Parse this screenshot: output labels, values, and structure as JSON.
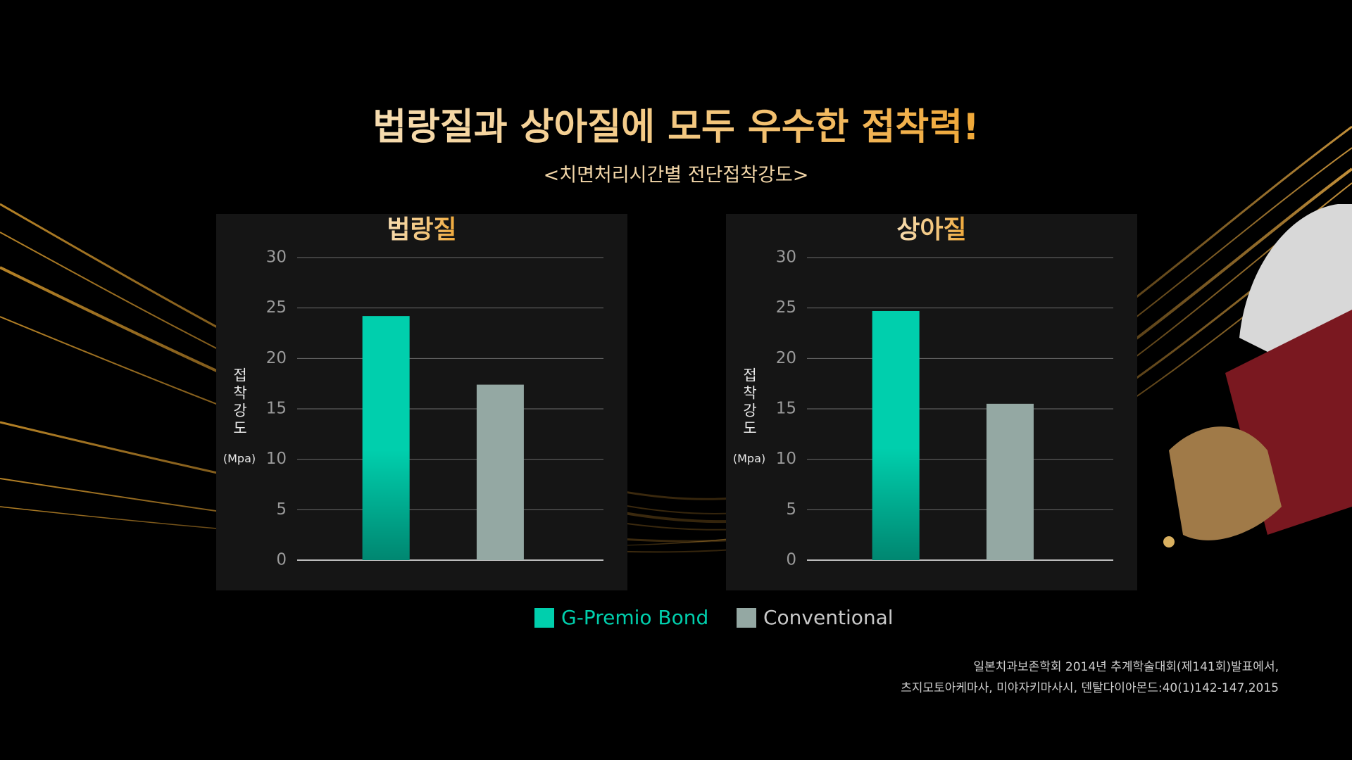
{
  "title": "법랑질과 상아질에 모두 우수한 접착력!",
  "subtitle": "<치면처리시간별 전단접착강도>",
  "chart_data": [
    {
      "type": "bar",
      "title": "법랑질",
      "ylabel": "접착강도",
      "yunit": "(Mpa)",
      "ylim": [
        0,
        30
      ],
      "yticks": [
        0,
        5,
        10,
        15,
        20,
        25,
        30
      ],
      "grid": true,
      "series": [
        {
          "name": "G-Premio Bond",
          "color": "#00cfad",
          "values": [
            24.2
          ]
        },
        {
          "name": "Conventional",
          "color": "#94a8a3",
          "values": [
            17.4
          ]
        }
      ]
    },
    {
      "type": "bar",
      "title": "상아질",
      "ylabel": "접착강도",
      "yunit": "(Mpa)",
      "ylim": [
        0,
        30
      ],
      "yticks": [
        0,
        5,
        10,
        15,
        20,
        25,
        30
      ],
      "grid": true,
      "series": [
        {
          "name": "G-Premio Bond",
          "color": "#00cfad",
          "values": [
            24.7
          ]
        },
        {
          "name": "Conventional",
          "color": "#94a8a3",
          "values": [
            15.5
          ]
        }
      ]
    }
  ],
  "source": [
    "일본치과보존학회 2014년 추계학술대회(제141회)발표에서,",
    "츠지모토아케마사, 미야자키마사시, 덴탈다이아몬드:40(1)142-147,2015"
  ]
}
